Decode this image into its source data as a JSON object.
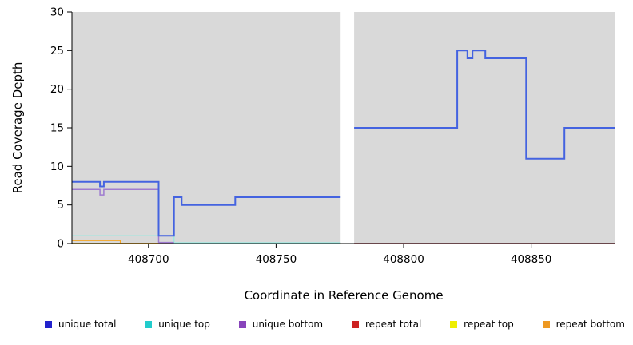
{
  "chart_data": {
    "type": "line",
    "title": "",
    "xlabel": "Coordinate in Reference Genome",
    "ylabel": "Read Coverage Depth",
    "xlim": [
      408670,
      408883
    ],
    "ylim": [
      0,
      30
    ],
    "x_ticks": [
      408700,
      408750,
      408800,
      408850
    ],
    "y_ticks": [
      0,
      5,
      10,
      15,
      20,
      25,
      30
    ],
    "plot_bg": "#d9d9d9",
    "grid": false,
    "legend_position": "bottom",
    "gap": {
      "x_start": 408775.3,
      "x_end": 408780.6
    },
    "series": [
      {
        "name": "repeat total",
        "color": "#cc4455",
        "width": 1.5,
        "segments": [
          [
            [
              408670,
              0
            ],
            [
              408775.3,
              0
            ]
          ],
          [
            [
              408780.6,
              0
            ],
            [
              408883,
              0
            ]
          ]
        ]
      },
      {
        "name": "repeat top",
        "color": "#e8e822",
        "width": 1.5,
        "segments": [
          [
            [
              408670,
              0
            ],
            [
              408775.3,
              0
            ]
          ]
        ]
      },
      {
        "name": "unique top",
        "color": "#9fe8e0",
        "width": 1.5,
        "segments": [
          [
            [
              408670,
              1
            ],
            [
              408710,
              1
            ],
            [
              408710,
              0.1
            ],
            [
              408775.3,
              0.1
            ]
          ]
        ]
      },
      {
        "name": "unique bottom",
        "color": "#9e7bd0",
        "width": 1.5,
        "segments": [
          [
            [
              408670,
              7
            ],
            [
              408681,
              7
            ],
            [
              408681,
              6.3
            ],
            [
              408682.5,
              6.3
            ],
            [
              408682.5,
              7
            ],
            [
              408704,
              7
            ],
            [
              408704,
              0.15
            ],
            [
              408710,
              0.15
            ]
          ]
        ]
      },
      {
        "name": "unique total",
        "color": "#4463e0",
        "width": 2,
        "segments": [
          [
            [
              408670,
              8
            ],
            [
              408681,
              8
            ],
            [
              408681,
              7.4
            ],
            [
              408682.5,
              7.4
            ],
            [
              408682.5,
              8
            ],
            [
              408704,
              8
            ],
            [
              408704,
              1
            ],
            [
              408710,
              1
            ],
            [
              408710,
              6
            ],
            [
              408713,
              6
            ],
            [
              408713,
              5
            ],
            [
              408734,
              5
            ],
            [
              408734,
              6
            ],
            [
              408775.3,
              6
            ]
          ],
          [
            [
              408780.6,
              15
            ],
            [
              408821,
              15
            ],
            [
              408821,
              25
            ],
            [
              408825,
              25
            ],
            [
              408825,
              24
            ],
            [
              408827,
              24
            ],
            [
              408827,
              25
            ],
            [
              408832,
              25
            ],
            [
              408832,
              24
            ],
            [
              408848,
              24
            ],
            [
              408848,
              11
            ],
            [
              408863,
              11
            ],
            [
              408863,
              15
            ],
            [
              408883,
              15
            ]
          ]
        ]
      },
      {
        "name": "repeat bottom",
        "color": "#f5a623",
        "width": 1.5,
        "segments": [
          [
            [
              408670,
              0.4
            ],
            [
              408689,
              0.4
            ],
            [
              408689,
              0
            ],
            [
              408704,
              0
            ]
          ]
        ]
      }
    ]
  },
  "legend": {
    "items": [
      {
        "label": "unique total",
        "color": "#2222cc"
      },
      {
        "label": "unique top",
        "color": "#22cccc"
      },
      {
        "label": "unique bottom",
        "color": "#8844bb"
      },
      {
        "label": "repeat total",
        "color": "#cc2222"
      },
      {
        "label": "repeat top",
        "color": "#eeee00"
      },
      {
        "label": "repeat bottom",
        "color": "#ee9922"
      }
    ]
  }
}
